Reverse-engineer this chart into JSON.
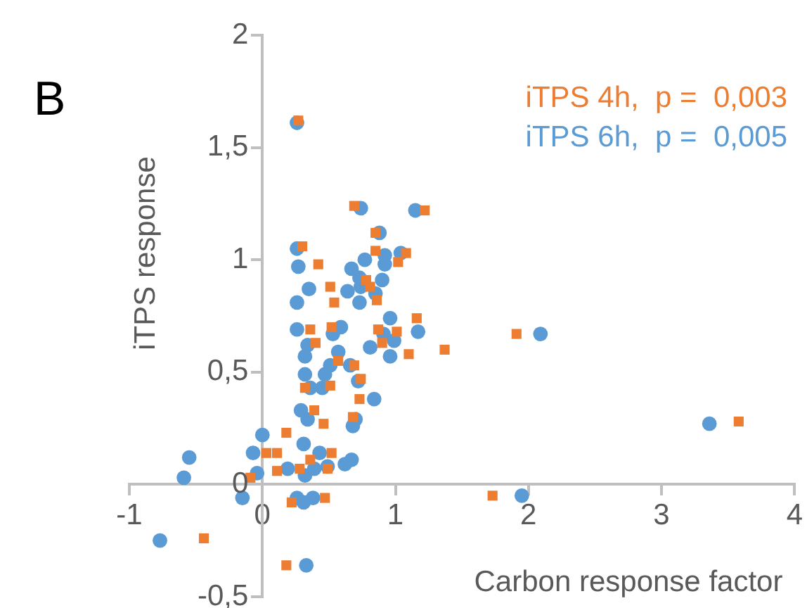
{
  "chart_data": {
    "type": "scatter",
    "xlabel": "Carbon response factor",
    "ylabel": "iTPS response",
    "annotations": [
      "B"
    ],
    "xlim": [
      -1,
      4
    ],
    "xticks": [
      -1,
      0,
      1,
      2,
      3,
      4
    ],
    "ylim": [
      -0.5,
      2
    ],
    "yticks": [
      {
        "value": -0.5,
        "label": "-0,5"
      },
      0,
      {
        "value": 0.5,
        "label": "0,5"
      },
      1,
      {
        "value": 1.5,
        "label": "1,5"
      },
      2
    ],
    "grid": false,
    "legend": "top right",
    "series": [
      {
        "name": "iTPS 4h,  p =  0,003",
        "color": "#ed7d31",
        "marker": "square",
        "x": [
          0.27,
          0.3,
          0.42,
          0.85,
          0.85,
          1.08,
          1.02,
          0.51,
          0.54,
          0.78,
          0.81,
          0.86,
          0.69,
          1.22,
          1.16,
          0.36,
          0.52,
          0.87,
          1.01,
          0.9,
          0.4,
          1.1,
          1.37,
          0.69,
          0.57,
          0.74,
          0.32,
          0.51,
          0.73,
          0.39,
          0.46,
          0.18,
          0.68,
          0.03,
          0.11,
          0.52,
          0.36,
          0.28,
          0.11,
          -0.09,
          0.49,
          0.22,
          0.47,
          -0.44,
          0.18,
          1.91,
          3.58,
          1.73
        ],
        "values": [
          1.62,
          1.06,
          0.98,
          1.12,
          1.04,
          1.03,
          0.99,
          0.88,
          0.81,
          0.91,
          0.88,
          0.82,
          1.24,
          1.22,
          0.74,
          0.69,
          0.7,
          0.69,
          0.68,
          0.63,
          0.63,
          0.58,
          0.6,
          0.53,
          0.55,
          0.47,
          0.43,
          0.44,
          0.38,
          0.33,
          0.27,
          0.23,
          0.3,
          0.14,
          0.14,
          0.14,
          0.11,
          0.07,
          0.06,
          0.03,
          0.07,
          -0.08,
          -0.06,
          -0.24,
          -0.36,
          0.67,
          0.28,
          -0.05
        ]
      },
      {
        "name": "iTPS 6h,  p =  0,005",
        "color": "#5b9bd5",
        "marker": "circle",
        "x": [
          0.26,
          0.74,
          1.15,
          0.88,
          0.26,
          0.27,
          0.77,
          1.04,
          0.92,
          0.92,
          0.67,
          0.73,
          0.74,
          0.9,
          0.35,
          0.64,
          0.85,
          0.26,
          0.73,
          0.96,
          0.26,
          0.53,
          0.59,
          0.91,
          1.17,
          0.34,
          0.81,
          0.99,
          0.32,
          0.57,
          0.96,
          0.66,
          0.51,
          0.32,
          0.47,
          0.72,
          0.36,
          0.45,
          0.84,
          0.29,
          0.34,
          0.7,
          0.68,
          0.0,
          0.31,
          0.43,
          -0.07,
          -0.55,
          -0.59,
          -0.04,
          0.19,
          0.32,
          0.39,
          0.49,
          0.62,
          0.67,
          -0.15,
          0.26,
          0.31,
          0.38,
          -0.77,
          0.33,
          2.09,
          3.36,
          1.95
        ],
        "values": [
          1.61,
          1.23,
          1.22,
          1.12,
          1.05,
          0.97,
          1.0,
          1.03,
          1.02,
          0.98,
          0.96,
          0.92,
          0.88,
          0.91,
          0.87,
          0.86,
          0.85,
          0.81,
          0.81,
          0.74,
          0.69,
          0.67,
          0.7,
          0.67,
          0.68,
          0.62,
          0.61,
          0.64,
          0.57,
          0.59,
          0.57,
          0.53,
          0.53,
          0.49,
          0.49,
          0.46,
          0.43,
          0.43,
          0.38,
          0.33,
          0.29,
          0.29,
          0.26,
          0.22,
          0.18,
          0.14,
          0.14,
          0.12,
          0.03,
          0.05,
          0.07,
          0.04,
          0.07,
          0.08,
          0.09,
          0.11,
          -0.06,
          -0.06,
          -0.08,
          -0.06,
          -0.25,
          -0.36,
          0.67,
          0.27,
          -0.05
        ]
      }
    ]
  }
}
